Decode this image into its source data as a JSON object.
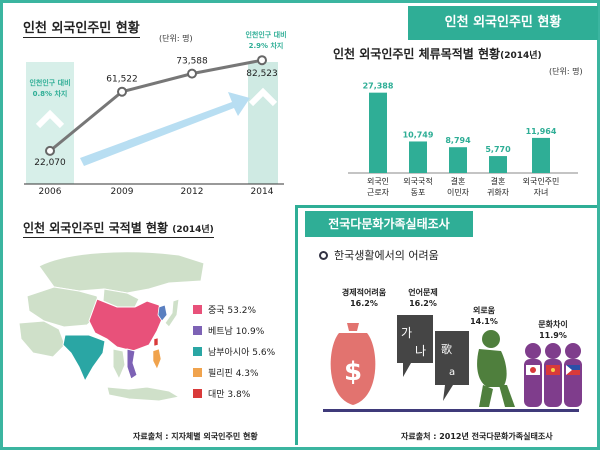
{
  "header": {
    "main_tag": "인천 외국인주민 현황"
  },
  "trend": {
    "title": "인천 외국인주민 현황",
    "unit": "(단위: 명)",
    "note_2006": [
      "인천인구 대비",
      "0.8%  차지"
    ],
    "note_2014": [
      "인천인구 대비",
      "2.9%  차지"
    ]
  },
  "purpose": {
    "title": "인천 외국인주민 체류목적별 현황",
    "title_year": "(2014년)",
    "unit": "(단위: 명)"
  },
  "nationality": {
    "title": "인천 외국인주민 국적별 현황",
    "title_year": "(2014년)",
    "source": "자료출처 : 지자체별 외국인주민 현황"
  },
  "survey": {
    "tag": "전국다문화가족실태조사",
    "subtitle": "한국생활에서의  어려움",
    "source": "자료출처 : 2012년 전국다문화가족실태조사",
    "glyphs": {
      "dollar": "$",
      "ga": "가",
      "na": "나",
      "ga_han": "歌",
      "a": "a"
    }
  },
  "chart_data": [
    {
      "type": "line",
      "title": "인천 외국인주민 현황",
      "unit": "(단위: 명)",
      "x": [
        "2006",
        "2009",
        "2012",
        "2014"
      ],
      "values": [
        22070,
        61522,
        73588,
        82523
      ],
      "value_labels": [
        "22,070",
        "61,522",
        "73,588",
        "82,523"
      ],
      "ylim": [
        0,
        100000
      ]
    },
    {
      "type": "bar",
      "title": "인천 외국인주민 체류목적별 현황 (2014년)",
      "unit": "(단위: 명)",
      "categories": [
        [
          "외국인",
          "근로자"
        ],
        [
          "외국국적",
          "동포"
        ],
        [
          "결혼",
          "이민자"
        ],
        [
          "결혼",
          "귀화자"
        ],
        [
          "외국인주민",
          "자녀"
        ]
      ],
      "values": [
        27388,
        10749,
        8794,
        5770,
        11964
      ],
      "value_labels": [
        "27,388",
        "10,749",
        "8,794",
        "5,770",
        "11,964"
      ],
      "ylim": [
        0,
        30000
      ],
      "color": "#2fae96"
    },
    {
      "type": "pie",
      "title": "인천 외국인주민 국적별 현황 (2014년)",
      "series": [
        {
          "name": "중국 53.2%",
          "value": 53.2,
          "color": "#e8517a"
        },
        {
          "name": "베트남 10.9%",
          "value": 10.9,
          "color": "#7d62b5"
        },
        {
          "name": "남부아시아 5.6%",
          "value": 5.6,
          "color": "#2aa6a4"
        },
        {
          "name": "필리핀 4.3%",
          "value": 4.3,
          "color": "#f0a34d"
        },
        {
          "name": "대만 3.8%",
          "value": 3.8,
          "color": "#d93a3a"
        }
      ]
    },
    {
      "type": "bar",
      "title": "한국생활에서의 어려움",
      "categories": [
        "경제적어려움",
        "언어문제",
        "외로움",
        "문화차이"
      ],
      "values": [
        16.2,
        16.2,
        14.1,
        11.9
      ],
      "value_labels": [
        "16.2%",
        "16.2%",
        "14.1%",
        "11.9%"
      ],
      "colors": [
        "#e2736f",
        "#454545",
        "#4f7f3d",
        "#7f3d8c"
      ]
    }
  ]
}
